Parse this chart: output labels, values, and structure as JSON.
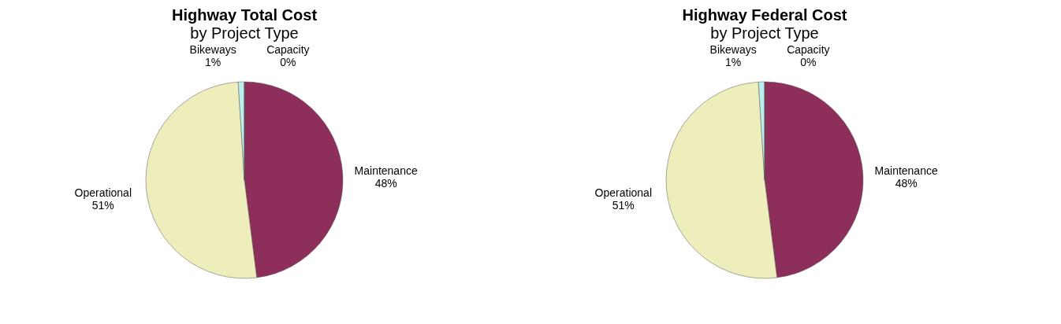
{
  "chart_data": [
    {
      "type": "pie",
      "title": "Highway Total Cost",
      "subtitle": "by Project Type",
      "categories": [
        "Maintenance",
        "Operational",
        "Bikeways",
        "Capacity"
      ],
      "values": [
        48,
        51,
        1,
        0
      ],
      "colors": [
        "#8e2e5a",
        "#eeeebc",
        "#bdeeee",
        "#9a9aee"
      ],
      "value_labels": [
        "48%",
        "51%",
        "1%",
        "0%"
      ],
      "legend": false
    },
    {
      "type": "pie",
      "title": "Highway Federal Cost",
      "subtitle": "by Project Type",
      "categories": [
        "Maintenance",
        "Operational",
        "Bikeways",
        "Capacity"
      ],
      "values": [
        48,
        51,
        1,
        0
      ],
      "colors": [
        "#8e2e5a",
        "#eeeebc",
        "#bdeeee",
        "#9a9aee"
      ],
      "value_labels": [
        "48%",
        "51%",
        "1%",
        "0%"
      ],
      "legend": false
    }
  ]
}
